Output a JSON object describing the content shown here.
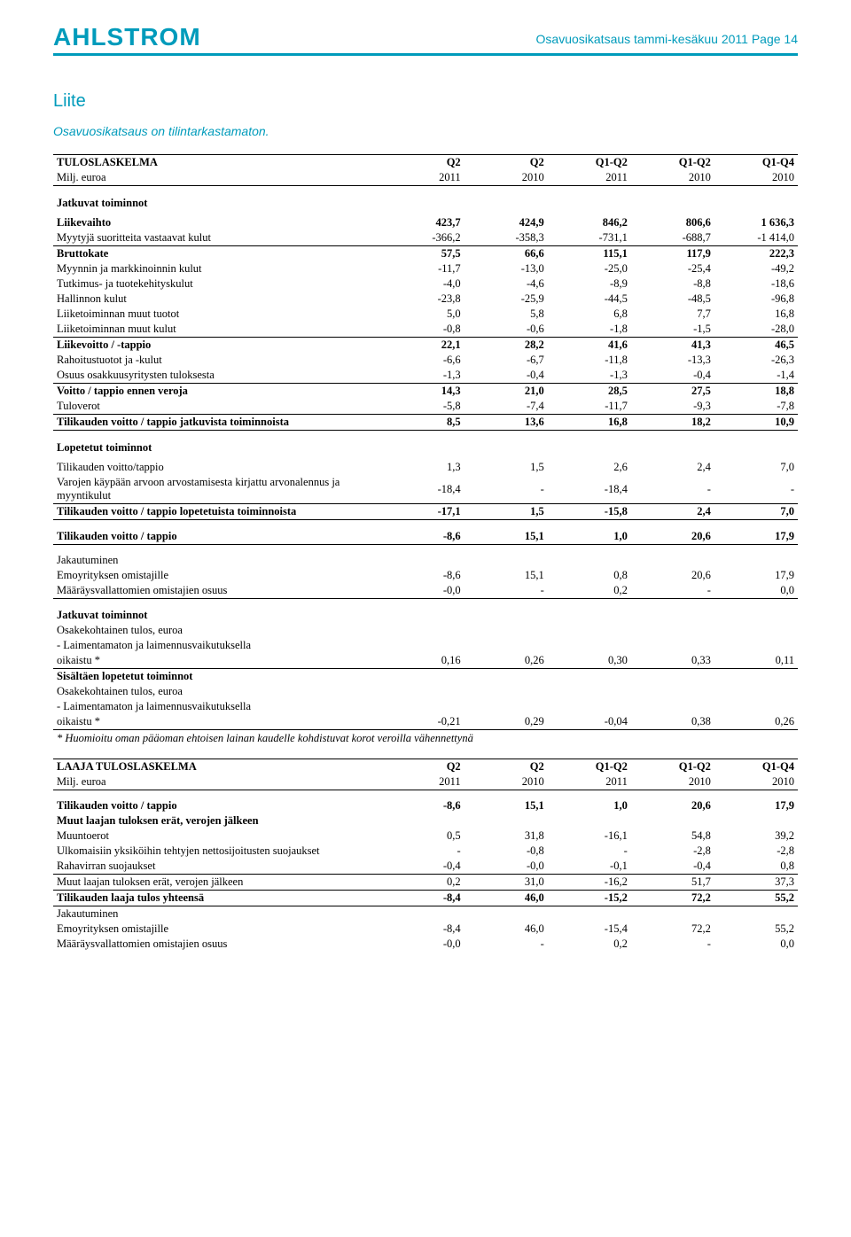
{
  "header": {
    "logo": "AHLSTROM",
    "page_title": "Osavuosikatsaus tammi-kesäkuu 2011 Page 14"
  },
  "liite": {
    "title": "Liite",
    "subtitle": "Osavuosikatsaus on tilintarkastamaton."
  },
  "table1": {
    "heading_label": "TULOSLASKELMA",
    "sub_label": "Milj. euroa",
    "cols": [
      "Q2",
      "Q2",
      "Q1-Q2",
      "Q1-Q2",
      "Q1-Q4"
    ],
    "years": [
      "2011",
      "2010",
      "2011",
      "2010",
      "2010"
    ],
    "section1_title": "Jatkuvat toiminnot",
    "rows1": [
      {
        "label": "Liikevaihto",
        "vals": [
          "423,7",
          "424,9",
          "846,2",
          "806,6",
          "1 636,3"
        ],
        "bold": true
      },
      {
        "label": "Myytyjä suoritteita vastaavat kulut",
        "vals": [
          "-366,2",
          "-358,3",
          "-731,1",
          "-688,7",
          "-1 414,0"
        ],
        "line_below": true
      },
      {
        "label": "Bruttokate",
        "vals": [
          "57,5",
          "66,6",
          "115,1",
          "117,9",
          "222,3"
        ],
        "bold": true
      },
      {
        "label": "Myynnin ja markkinoinnin kulut",
        "vals": [
          "-11,7",
          "-13,0",
          "-25,0",
          "-25,4",
          "-49,2"
        ]
      },
      {
        "label": "Tutkimus- ja tuotekehityskulut",
        "vals": [
          "-4,0",
          "-4,6",
          "-8,9",
          "-8,8",
          "-18,6"
        ]
      },
      {
        "label": "Hallinnon kulut",
        "vals": [
          "-23,8",
          "-25,9",
          "-44,5",
          "-48,5",
          "-96,8"
        ]
      },
      {
        "label": "Liiketoiminnan muut tuotot",
        "vals": [
          "5,0",
          "5,8",
          "6,8",
          "7,7",
          "16,8"
        ]
      },
      {
        "label": "Liiketoiminnan muut kulut",
        "vals": [
          "-0,8",
          "-0,6",
          "-1,8",
          "-1,5",
          "-28,0"
        ],
        "line_below": true
      },
      {
        "label": "Liikevoitto / -tappio",
        "vals": [
          "22,1",
          "28,2",
          "41,6",
          "41,3",
          "46,5"
        ],
        "bold": true
      },
      {
        "label": "Rahoitustuotot ja -kulut",
        "vals": [
          "-6,6",
          "-6,7",
          "-11,8",
          "-13,3",
          "-26,3"
        ]
      },
      {
        "label": "Osuus osakkuusyritysten tuloksesta",
        "vals": [
          "-1,3",
          "-0,4",
          "-1,3",
          "-0,4",
          "-1,4"
        ],
        "line_below": true
      },
      {
        "label": "Voitto / tappio ennen veroja",
        "vals": [
          "14,3",
          "21,0",
          "28,5",
          "27,5",
          "18,8"
        ],
        "bold": true
      },
      {
        "label": "Tuloverot",
        "vals": [
          "-5,8",
          "-7,4",
          "-11,7",
          "-9,3",
          "-7,8"
        ],
        "line_below": true
      },
      {
        "label": "Tilikauden voitto / tappio jatkuvista toiminnoista",
        "vals": [
          "8,5",
          "13,6",
          "16,8",
          "18,2",
          "10,9"
        ],
        "bold": true,
        "line_below": true
      }
    ],
    "section2_title": "Lopetetut toiminnot",
    "rows2": [
      {
        "label": "Tilikauden voitto/tappio",
        "vals": [
          "1,3",
          "1,5",
          "2,6",
          "2,4",
          "7,0"
        ]
      },
      {
        "label": "Varojen käypään arvoon arvostamisesta kirjattu arvonalennus ja myyntikulut",
        "vals": [
          "-18,4",
          "-",
          "-18,4",
          "-",
          "-"
        ],
        "line_below": true
      },
      {
        "label": "Tilikauden voitto / tappio lopetetuista toiminnoista",
        "vals": [
          "-17,1",
          "1,5",
          "-15,8",
          "2,4",
          "7,0"
        ],
        "bold": true,
        "line_below": true
      }
    ],
    "rows3": [
      {
        "label": "Tilikauden voitto / tappio",
        "vals": [
          "-8,6",
          "15,1",
          "1,0",
          "20,6",
          "17,9"
        ],
        "bold": true,
        "line_below": true
      }
    ],
    "section4_title": "Jakautuminen",
    "rows4": [
      {
        "label": "Emoyrityksen omistajille",
        "vals": [
          "-8,6",
          "15,1",
          "0,8",
          "20,6",
          "17,9"
        ]
      },
      {
        "label": "Määräysvallattomien omistajien osuus",
        "vals": [
          "-0,0",
          "-",
          "0,2",
          "-",
          "0,0"
        ],
        "line_below": true
      }
    ],
    "section5_title": "Jatkuvat toiminnot",
    "eps1_label": "Osakekohtainen tulos, euroa",
    "eps1_sub": "- Laimentamaton ja laimennusvaikutuksella oikaistu *",
    "eps1_vals": [
      "0,16",
      "0,26",
      "0,30",
      "0,33",
      "0,11"
    ],
    "section6_title": "Sisältäen lopetetut toiminnot",
    "eps2_label": "Osakekohtainen tulos, euroa",
    "eps2_sub": "- Laimentamaton ja laimennusvaikutuksella oikaistu *",
    "eps2_vals": [
      "-0,21",
      "0,29",
      "-0,04",
      "0,38",
      "0,26"
    ],
    "footnote": "* Huomioitu oman pääoman ehtoisen lainan kaudelle kohdistuvat korot veroilla vähennettynä"
  },
  "table2": {
    "heading_label": "LAAJA TULOSLASKELMA",
    "sub_label": "Milj. euroa",
    "cols": [
      "Q2",
      "Q2",
      "Q1-Q2",
      "Q1-Q2",
      "Q1-Q4"
    ],
    "years": [
      "2011",
      "2010",
      "2011",
      "2010",
      "2010"
    ],
    "rows": [
      {
        "label": "Tilikauden voitto / tappio",
        "vals": [
          "-8,6",
          "15,1",
          "1,0",
          "20,6",
          "17,9"
        ],
        "bold": true
      },
      {
        "label": "Muut laajan tuloksen erät, verojen jälkeen",
        "vals": [
          "",
          "",
          "",
          "",
          ""
        ],
        "bold_label": true
      },
      {
        "label": "Muuntoerot",
        "vals": [
          "0,5",
          "31,8",
          "-16,1",
          "54,8",
          "39,2"
        ]
      },
      {
        "label": "Ulkomaisiin yksiköihin tehtyjen nettosijoitusten suojaukset",
        "vals": [
          "-",
          "-0,8",
          "-",
          "-2,8",
          "-2,8"
        ]
      },
      {
        "label": "Rahavirran suojaukset",
        "vals": [
          "-0,4",
          "-0,0",
          "-0,1",
          "-0,4",
          "0,8"
        ],
        "line_below": true
      },
      {
        "label": "Muut laajan tuloksen erät, verojen jälkeen",
        "vals": [
          "0,2",
          "31,0",
          "-16,2",
          "51,7",
          "37,3"
        ],
        "line_below": true
      },
      {
        "label": "Tilikauden laaja tulos yhteensä",
        "vals": [
          "-8,4",
          "46,0",
          "-15,2",
          "72,2",
          "55,2"
        ],
        "bold": true,
        "line_below": true
      },
      {
        "label": "Jakautuminen",
        "vals": [
          "",
          "",
          "",
          "",
          ""
        ]
      },
      {
        "label": "Emoyrityksen omistajille",
        "vals": [
          "-8,4",
          "46,0",
          "-15,4",
          "72,2",
          "55,2"
        ]
      },
      {
        "label": "Määräysvallattomien omistajien osuus",
        "vals": [
          "-0,0",
          "-",
          "0,2",
          "-",
          "0,0"
        ]
      }
    ]
  }
}
